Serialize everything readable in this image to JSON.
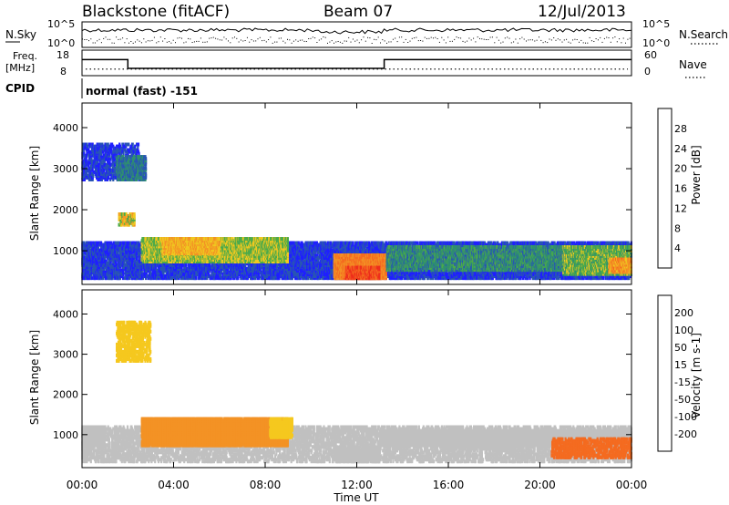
{
  "header": {
    "station": "Blackstone (fitACF)",
    "beam": "Beam 07",
    "date": "12/Jul/2013"
  },
  "noise_panel": {
    "left_label": "N.Sky",
    "right_label": "N.Search",
    "left_ticks": [
      "10^5",
      "10^0"
    ],
    "right_ticks": [
      "10^5",
      "10^0"
    ]
  },
  "freq_panel": {
    "left_label_1": "Freq.",
    "left_label_2": "[MHz]",
    "right_label": "Nave",
    "left_ticks": [
      "18",
      "8"
    ],
    "right_ticks": [
      "60",
      "0"
    ],
    "freq_steps": [
      {
        "start_h": 0,
        "end_h": 2.0,
        "mhz": 14.5
      },
      {
        "start_h": 2.0,
        "end_h": 13.2,
        "mhz": 10.5
      },
      {
        "start_h": 13.2,
        "end_h": 24,
        "mhz": 14.5
      }
    ],
    "nave_value": 13,
    "freq_range": [
      8,
      18
    ],
    "nave_range": [
      0,
      60
    ]
  },
  "cpid": {
    "label": "CPID",
    "value": "normal (fast) -151"
  },
  "chart_data": [
    {
      "type": "heatmap",
      "name": "power",
      "ylabel": "Slant Range [km]",
      "yticks": [
        "1000",
        "2000",
        "3000",
        "4000"
      ],
      "ylim": [
        180,
        4600
      ],
      "xlim_hours": [
        0,
        24
      ],
      "colorbar_label": "Power [dB]",
      "colorbar_ticks": [
        "4",
        "8",
        "12",
        "16",
        "20",
        "24",
        "28"
      ],
      "colorbar_colors": [
        "#1f1fff",
        "#2855b4",
        "#2f8f70",
        "#4caa4a",
        "#f0c820",
        "#f39225",
        "#f46b20",
        "#ee2e1c"
      ],
      "regions": [
        {
          "x": [
            0,
            24
          ],
          "y": [
            300,
            1200
          ],
          "value": 4,
          "density": 0.55
        },
        {
          "x": [
            2.6,
            9
          ],
          "y": [
            700,
            1300
          ],
          "value": 16,
          "density": 0.8
        },
        {
          "x": [
            3.5,
            6
          ],
          "y": [
            900,
            1300
          ],
          "value": 20,
          "density": 0.8
        },
        {
          "x": [
            11,
            13.3
          ],
          "y": [
            300,
            900
          ],
          "value": 24,
          "density": 0.85
        },
        {
          "x": [
            11.5,
            13
          ],
          "y": [
            300,
            600
          ],
          "value": 28,
          "density": 0.9
        },
        {
          "x": [
            13.3,
            21
          ],
          "y": [
            500,
            1100
          ],
          "value": 10,
          "density": 0.7
        },
        {
          "x": [
            21,
            24
          ],
          "y": [
            400,
            1100
          ],
          "value": 14,
          "density": 0.8
        },
        {
          "x": [
            23,
            24
          ],
          "y": [
            450,
            800
          ],
          "value": 22,
          "density": 0.85
        },
        {
          "x": [
            0,
            2.5
          ],
          "y": [
            2700,
            3600
          ],
          "value": 4,
          "density": 0.35
        },
        {
          "x": [
            1.5,
            2.8
          ],
          "y": [
            2700,
            3300
          ],
          "value": 8,
          "density": 0.6
        },
        {
          "x": [
            1.6,
            2.3
          ],
          "y": [
            1600,
            1900
          ],
          "value": 18,
          "density": 0.6
        }
      ]
    },
    {
      "type": "heatmap",
      "name": "velocity",
      "ylabel": "Slant Range [km]",
      "yticks": [
        "1000",
        "2000",
        "3000",
        "4000"
      ],
      "ylim": [
        180,
        4600
      ],
      "xlim_hours": [
        0,
        24
      ],
      "colorbar_label": "Velocity [m s-1]",
      "colorbar_ticks": [
        "200",
        "100",
        "50",
        "15",
        "-15",
        "-50",
        "-100",
        "-200"
      ],
      "colorbar_colors": [
        "#2626ff",
        "#315fb5",
        "#2f8f70",
        "#77c83a",
        "#c0c0c0",
        "#f5c81e",
        "#f39225",
        "#f46b20",
        "#ee2e1c"
      ],
      "regions": [
        {
          "x": [
            0,
            24
          ],
          "y": [
            300,
            1200
          ],
          "value": 0,
          "density": 0.35
        },
        {
          "x": [
            2.6,
            9
          ],
          "y": [
            700,
            1400
          ],
          "value": -75,
          "density": 0.8
        },
        {
          "x": [
            8.2,
            9.2
          ],
          "y": [
            900,
            1400
          ],
          "value": -30,
          "density": 0.6
        },
        {
          "x": [
            13,
            24
          ],
          "y": [
            700,
            1100
          ],
          "value": 0,
          "density": 0.75
        },
        {
          "x": [
            20.5,
            24
          ],
          "y": [
            400,
            900
          ],
          "value": -150,
          "density": 0.4
        },
        {
          "x": [
            0,
            1
          ],
          "y": [
            700,
            1200
          ],
          "value": 0,
          "density": 0.7
        },
        {
          "x": [
            1.5,
            3
          ],
          "y": [
            2800,
            3800
          ],
          "value": -40,
          "density": 0.4
        },
        {
          "x": [
            11,
            13
          ],
          "y": [
            300,
            700
          ],
          "value": 0,
          "density": 0.55
        }
      ]
    }
  ],
  "x_axis": {
    "ticks": [
      "00:00",
      "04:00",
      "08:00",
      "12:00",
      "16:00",
      "20:00",
      "00:00"
    ],
    "label": "Time UT"
  },
  "colors": {
    "axis": "#000000",
    "background": "#ffffff"
  }
}
